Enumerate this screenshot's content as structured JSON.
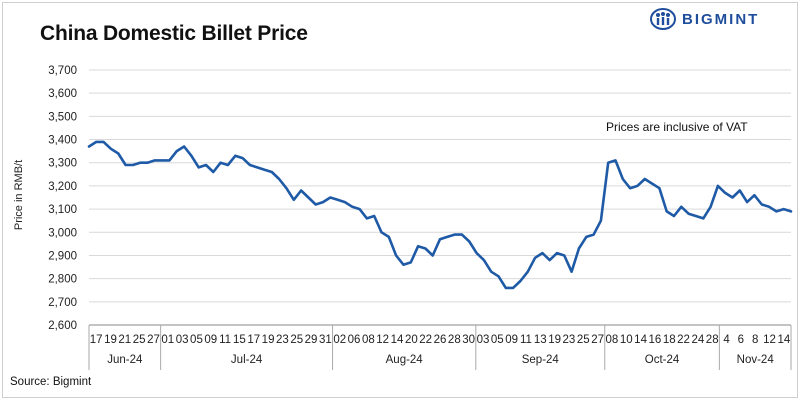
{
  "chart_data": {
    "type": "line",
    "title": "China Domestic Billet Price",
    "ylabel": "Price in RMB/t",
    "ylim": [
      2600,
      3700
    ],
    "yticks": [
      2600,
      2700,
      2800,
      2900,
      3000,
      3100,
      3200,
      3300,
      3400,
      3500,
      3600,
      3700
    ],
    "ytick_labels": [
      "2,600",
      "2,700",
      "2,800",
      "2,900",
      "3,000",
      "3,100",
      "3,200",
      "3,300",
      "3,400",
      "3,500",
      "3,600",
      "3,700"
    ],
    "grid": true,
    "annotation": "Prices are inclusive of VAT",
    "source": "Source: Bigmint",
    "line_color": "#1f5aa6",
    "x_tick_labels": [
      "17",
      "19",
      "21",
      "25",
      "27",
      "01",
      "03",
      "05",
      "09",
      "11",
      "15",
      "17",
      "19",
      "23",
      "25",
      "29",
      "31",
      "02",
      "06",
      "08",
      "12",
      "14",
      "20",
      "22",
      "26",
      "28",
      "30",
      "03",
      "05",
      "09",
      "11",
      "13",
      "19",
      "23",
      "25",
      "27",
      "08",
      "10",
      "14",
      "16",
      "18",
      "22",
      "24",
      "28",
      "4",
      "6",
      "8",
      "12",
      "14"
    ],
    "months": [
      "Jun-24",
      "Jul-24",
      "Aug-24",
      "Sep-24",
      "Oct-24",
      "Nov-24"
    ],
    "values": [
      3370,
      3390,
      3390,
      3360,
      3340,
      3290,
      3290,
      3300,
      3300,
      3310,
      3310,
      3310,
      3350,
      3370,
      3330,
      3280,
      3290,
      3260,
      3300,
      3290,
      3330,
      3320,
      3290,
      3280,
      3270,
      3260,
      3230,
      3190,
      3140,
      3180,
      3150,
      3120,
      3130,
      3150,
      3140,
      3130,
      3110,
      3100,
      3060,
      3070,
      3000,
      2980,
      2900,
      2860,
      2870,
      2940,
      2930,
      2900,
      2970,
      2980,
      2990,
      2990,
      2960,
      2910,
      2880,
      2830,
      2810,
      2760,
      2760,
      2790,
      2830,
      2890,
      2910,
      2880,
      2910,
      2900,
      2830,
      2930,
      2980,
      2990,
      3050,
      3300,
      3310,
      3230,
      3190,
      3200,
      3230,
      3210,
      3190,
      3090,
      3070,
      3110,
      3080,
      3070,
      3060,
      3110,
      3200,
      3170,
      3150,
      3180,
      3130,
      3160,
      3120,
      3110,
      3090,
      3100,
      3090
    ]
  }
}
